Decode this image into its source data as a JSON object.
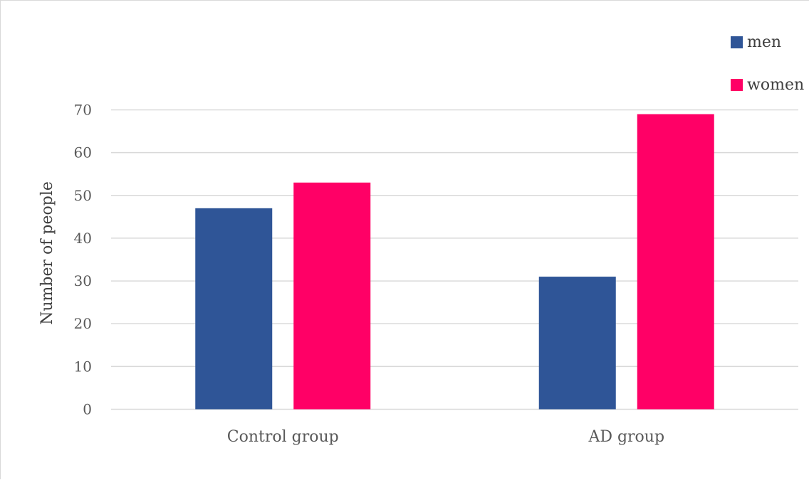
{
  "chart_data": {
    "type": "bar",
    "categories": [
      "Control group",
      "AD group"
    ],
    "series": [
      {
        "name": "men",
        "values": [
          47,
          31
        ],
        "color": "#2f5597"
      },
      {
        "name": "women",
        "values": [
          53,
          69
        ],
        "color": "#ff0066"
      }
    ],
    "ylabel": "Number of people",
    "xlabel": "",
    "ylim": [
      0,
      70
    ],
    "yticks": [
      0,
      10,
      20,
      30,
      40,
      50,
      60,
      70
    ],
    "grid": true,
    "legend_position": "top-right",
    "gridline_color": "#d9d9d9"
  }
}
